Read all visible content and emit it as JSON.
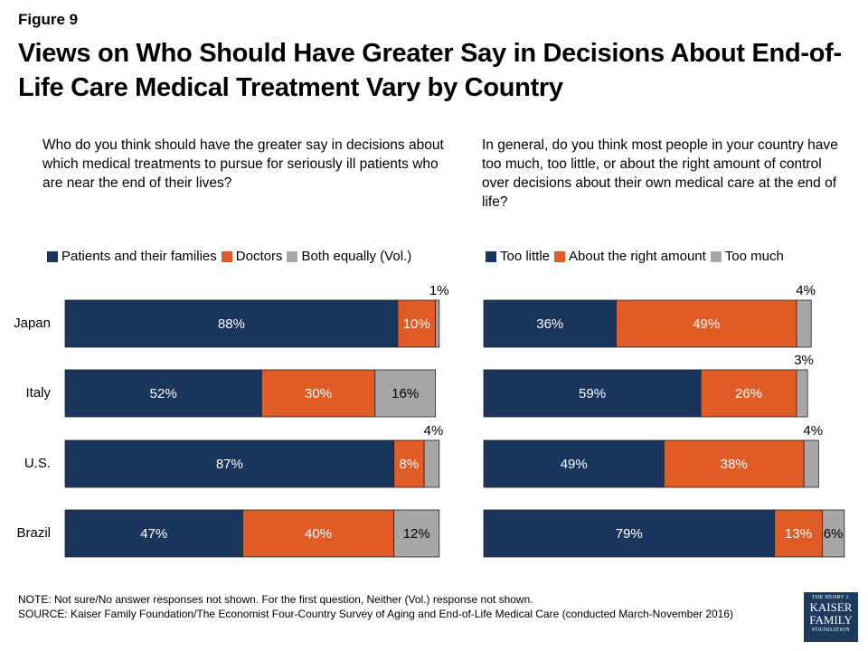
{
  "figure_label": "Figure 9",
  "title": "Views on Who Should Have Greater Say in Decisions About End-of-Life Care Medical Treatment Vary by Country",
  "notes": {
    "note": "NOTE: Not sure/No answer responses not shown. For the first question, Neither (Vol.) response not shown.",
    "source": "SOURCE: Kaiser Family Foundation/The Economist Four-Country Survey of Aging and End-of-Life Medical Care (conducted March-November 2016)"
  },
  "logo": {
    "line1": "THE HENRY J.",
    "line2": "KAISER",
    "line3": "FAMILY",
    "line4": "FOUNDATION"
  },
  "chart_data": [
    {
      "type": "bar",
      "orientation": "horizontal-stacked",
      "question": "Who do you think should have the greater say in decisions about which medical treatments to pursue for seriously ill patients who are near the end of their lives?",
      "categories": [
        "Japan",
        "Italy",
        "U.S.",
        "Brazil"
      ],
      "series": [
        {
          "name": "Patients and their families",
          "color": "#1b365d",
          "values": [
            88,
            52,
            87,
            47
          ]
        },
        {
          "name": "Doctors",
          "color": "#e05c27",
          "values": [
            10,
            30,
            8,
            40
          ]
        },
        {
          "name": "Both equally (Vol.)",
          "color": "#a6a6a6",
          "values": [
            1,
            16,
            4,
            12
          ]
        }
      ],
      "legend_position": "top",
      "grid": false
    },
    {
      "type": "bar",
      "orientation": "horizontal-stacked",
      "question": "In general, do you think most people in your country have too much, too little, or about the right amount of control over decisions about their own medical care at the end of life?",
      "categories": [
        "Japan",
        "Italy",
        "U.S.",
        "Brazil"
      ],
      "series": [
        {
          "name": "Too little",
          "color": "#1b365d",
          "values": [
            36,
            59,
            49,
            79
          ]
        },
        {
          "name": "About the right amount",
          "color": "#e05c27",
          "values": [
            49,
            26,
            38,
            13
          ]
        },
        {
          "name": "Too much",
          "color": "#a6a6a6",
          "values": [
            4,
            3,
            4,
            6
          ]
        }
      ],
      "legend_position": "top",
      "grid": false
    }
  ]
}
